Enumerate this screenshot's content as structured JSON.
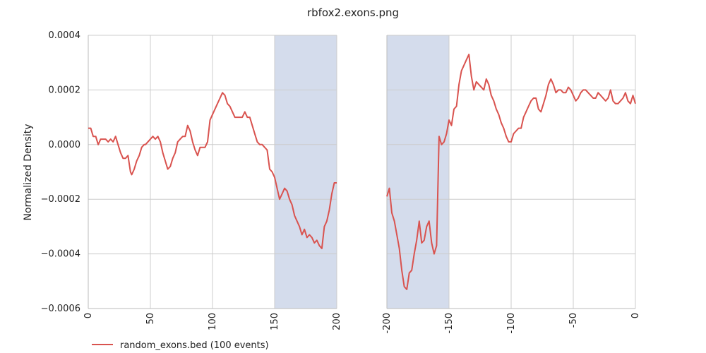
{
  "chart_data": {
    "type": "line",
    "title": "rbfox2.exons.png",
    "ylabel": "Normalized Density",
    "ylim": [
      -0.0006,
      0.0004
    ],
    "y_ticks": [
      "0.0004",
      "0.0002",
      "0.0000",
      "−0.0002",
      "−0.0004",
      "−0.0006"
    ],
    "y_tick_values": [
      0.0004,
      0.0002,
      0.0,
      -0.0002,
      -0.0004,
      -0.0006
    ],
    "grid": true,
    "legend_placement": "bottom-left",
    "colors": {
      "series": "#d9534f",
      "shade": "#d4dcec",
      "grid": "#cccccc"
    },
    "panels": [
      {
        "xlim": [
          0,
          200
        ],
        "x_ticks": [
          "0",
          "50",
          "100",
          "150",
          "200"
        ],
        "x_tick_values": [
          0,
          50,
          100,
          150,
          200
        ],
        "shaded_x": [
          150,
          200
        ],
        "series": [
          {
            "name": "random_exons.bed (100 events)",
            "x": [
              0,
              2,
              4,
              6,
              8,
              10,
              12,
              14,
              16,
              18,
              20,
              22,
              24,
              26,
              28,
              30,
              32,
              34,
              35,
              37,
              39,
              41,
              43,
              45,
              46,
              48,
              50,
              52,
              54,
              56,
              58,
              60,
              62,
              64,
              66,
              68,
              70,
              72,
              74,
              76,
              78,
              80,
              82,
              84,
              86,
              88,
              90,
              92,
              94,
              96,
              98,
              100,
              102,
              104,
              106,
              108,
              110,
              112,
              114,
              116,
              118,
              120,
              122,
              124,
              126,
              128,
              130,
              132,
              134,
              136,
              138,
              140,
              142,
              144,
              146,
              148,
              150,
              152,
              154,
              156,
              158,
              160,
              162,
              164,
              166,
              168,
              170,
              172,
              174,
              176,
              178,
              180,
              182,
              184,
              186,
              188,
              190,
              192,
              194,
              196,
              198,
              200
            ],
            "y": [
              6e-05,
              6e-05,
              3e-05,
              3e-05,
              0.0,
              2e-05,
              2e-05,
              2e-05,
              1e-05,
              2e-05,
              1e-05,
              3e-05,
              0.0,
              -3e-05,
              -5e-05,
              -5e-05,
              -4e-05,
              -0.0001,
              -0.00011,
              -9e-05,
              -6e-05,
              -4e-05,
              -1e-05,
              0.0,
              0.0,
              1e-05,
              2e-05,
              3e-05,
              2e-05,
              3e-05,
              1e-05,
              -3e-05,
              -6e-05,
              -9e-05,
              -8e-05,
              -5e-05,
              -3e-05,
              1e-05,
              2e-05,
              3e-05,
              3e-05,
              7e-05,
              5e-05,
              1e-05,
              -2e-05,
              -4e-05,
              -1e-05,
              -1e-05,
              -1e-05,
              1e-05,
              9e-05,
              0.00011,
              0.00013,
              0.00015,
              0.00017,
              0.00019,
              0.00018,
              0.00015,
              0.00014,
              0.00012,
              0.0001,
              0.0001,
              0.0001,
              0.0001,
              0.00012,
              0.0001,
              0.0001,
              7e-05,
              4e-05,
              1e-05,
              0.0,
              0.0,
              -1e-05,
              -2e-05,
              -9e-05,
              -0.0001,
              -0.00012,
              -0.00016,
              -0.0002,
              -0.00018,
              -0.00016,
              -0.00017,
              -0.0002,
              -0.00022,
              -0.00026,
              -0.00028,
              -0.0003,
              -0.00033,
              -0.00031,
              -0.00034,
              -0.00033,
              -0.00034,
              -0.00036,
              -0.00035,
              -0.00037,
              -0.00038,
              -0.0003,
              -0.00028,
              -0.00024,
              -0.00018,
              -0.00014,
              -0.00014
            ]
          }
        ]
      },
      {
        "xlim": [
          -200,
          0
        ],
        "x_ticks": [
          "-200",
          "-150",
          "-100",
          "-50",
          "0"
        ],
        "x_tick_values": [
          -200,
          -150,
          -100,
          -50,
          0
        ],
        "shaded_x": [
          -200,
          -150
        ],
        "series": [
          {
            "name": "random_exons.bed (100 events)",
            "x": [
              -200,
              -198,
              -196,
              -194,
              -192,
              -190,
              -188,
              -186,
              -184,
              -182,
              -180,
              -178,
              -176,
              -174,
              -172,
              -170,
              -168,
              -166,
              -164,
              -162,
              -160,
              -158,
              -156,
              -154,
              -152,
              -150,
              -148,
              -146,
              -144,
              -142,
              -140,
              -138,
              -136,
              -134,
              -132,
              -130,
              -128,
              -126,
              -124,
              -122,
              -120,
              -118,
              -116,
              -114,
              -112,
              -110,
              -108,
              -106,
              -104,
              -102,
              -100,
              -98,
              -96,
              -94,
              -92,
              -90,
              -88,
              -86,
              -84,
              -82,
              -80,
              -78,
              -76,
              -74,
              -72,
              -70,
              -68,
              -66,
              -64,
              -62,
              -60,
              -58,
              -56,
              -54,
              -52,
              -50,
              -48,
              -46,
              -44,
              -42,
              -40,
              -38,
              -36,
              -34,
              -32,
              -30,
              -28,
              -26,
              -24,
              -22,
              -20,
              -18,
              -16,
              -14,
              -12,
              -10,
              -8,
              -6,
              -4,
              -2,
              0
            ],
            "y": [
              -0.00019,
              -0.00016,
              -0.00025,
              -0.00028,
              -0.00033,
              -0.00038,
              -0.00046,
              -0.00052,
              -0.00053,
              -0.00047,
              -0.00046,
              -0.0004,
              -0.00035,
              -0.00028,
              -0.00036,
              -0.00035,
              -0.0003,
              -0.00028,
              -0.00036,
              -0.0004,
              -0.00037,
              3e-05,
              0.0,
              1e-05,
              4e-05,
              9e-05,
              7e-05,
              0.00013,
              0.00014,
              0.00022,
              0.00027,
              0.00029,
              0.00031,
              0.00033,
              0.00025,
              0.0002,
              0.00023,
              0.00022,
              0.00021,
              0.0002,
              0.00024,
              0.00022,
              0.00018,
              0.00016,
              0.00013,
              0.00011,
              8e-05,
              6e-05,
              3e-05,
              1e-05,
              1e-05,
              4e-05,
              5e-05,
              6e-05,
              6e-05,
              0.0001,
              0.00012,
              0.00014,
              0.00016,
              0.00017,
              0.00017,
              0.00013,
              0.00012,
              0.00015,
              0.00018,
              0.00022,
              0.00024,
              0.00022,
              0.00019,
              0.0002,
              0.0002,
              0.00019,
              0.00019,
              0.00021,
              0.0002,
              0.00018,
              0.00016,
              0.00017,
              0.00019,
              0.0002,
              0.0002,
              0.00019,
              0.00018,
              0.00017,
              0.00017,
              0.00019,
              0.00018,
              0.00017,
              0.00016,
              0.00017,
              0.0002,
              0.00016,
              0.00015,
              0.00015,
              0.00016,
              0.00017,
              0.00019,
              0.00016,
              0.00015,
              0.00018,
              0.00015
            ]
          }
        ]
      }
    ],
    "legend": [
      {
        "label": "random_exons.bed (100 events)",
        "color": "#d9534f"
      }
    ]
  }
}
